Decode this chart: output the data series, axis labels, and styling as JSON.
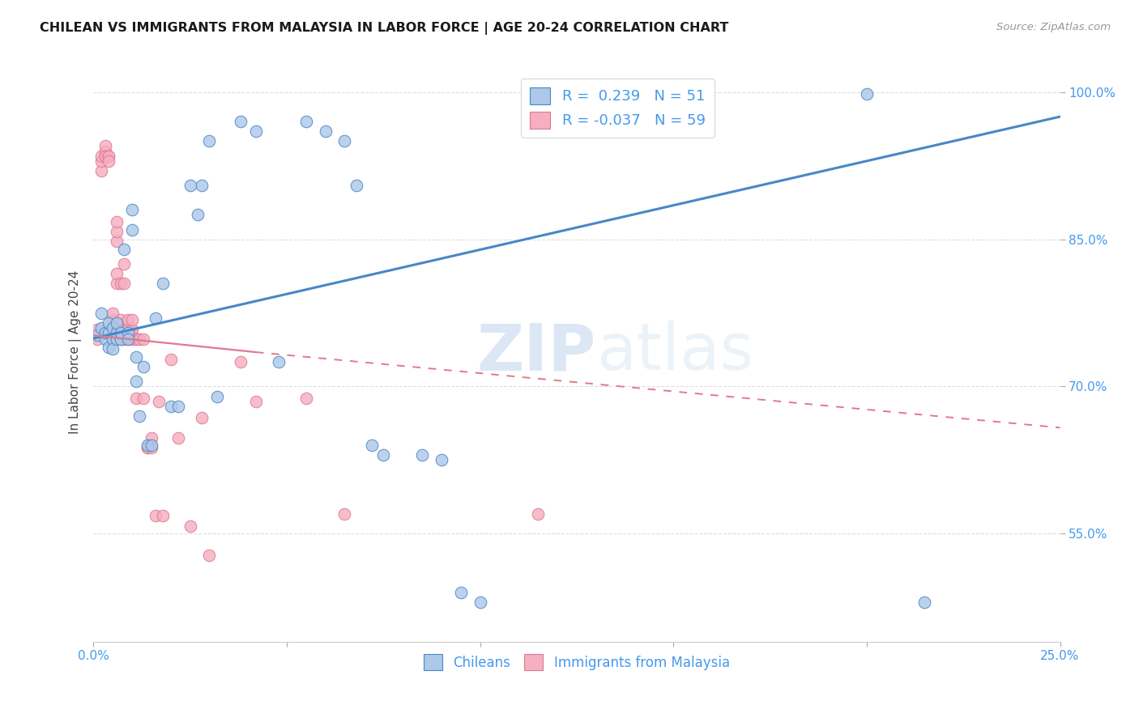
{
  "title": "CHILEAN VS IMMIGRANTS FROM MALAYSIA IN LABOR FORCE | AGE 20-24 CORRELATION CHART",
  "source": "Source: ZipAtlas.com",
  "ylabel": "In Labor Force | Age 20-24",
  "xlim": [
    0.0,
    0.25
  ],
  "ylim": [
    0.44,
    1.03
  ],
  "legend_blue_r": "0.239",
  "legend_blue_n": "51",
  "legend_pink_r": "-0.037",
  "legend_pink_n": "59",
  "blue_color": "#adc8e8",
  "pink_color": "#f5afc0",
  "blue_line_color": "#4a86c8",
  "pink_line_color": "#e07890",
  "watermark_zip": "ZIP",
  "watermark_atlas": "atlas",
  "background_color": "#ffffff",
  "blue_trend": [
    0.0,
    0.749,
    0.25,
    0.975
  ],
  "pink_trend_solid": [
    0.0,
    0.752,
    0.042,
    0.735
  ],
  "pink_trend_dashed": [
    0.042,
    0.735,
    0.25,
    0.658
  ],
  "chileans_x": [
    0.001,
    0.002,
    0.002,
    0.003,
    0.003,
    0.004,
    0.004,
    0.004,
    0.005,
    0.005,
    0.005,
    0.006,
    0.006,
    0.006,
    0.007,
    0.007,
    0.008,
    0.009,
    0.009,
    0.01,
    0.01,
    0.011,
    0.011,
    0.012,
    0.013,
    0.014,
    0.015,
    0.016,
    0.018,
    0.02,
    0.022,
    0.025,
    0.027,
    0.028,
    0.03,
    0.032,
    0.038,
    0.042,
    0.048,
    0.055,
    0.06,
    0.065,
    0.068,
    0.072,
    0.075,
    0.085,
    0.09,
    0.095,
    0.1,
    0.2,
    0.215
  ],
  "chileans_y": [
    0.752,
    0.76,
    0.775,
    0.748,
    0.755,
    0.74,
    0.755,
    0.765,
    0.748,
    0.738,
    0.76,
    0.748,
    0.755,
    0.765,
    0.748,
    0.755,
    0.84,
    0.755,
    0.748,
    0.88,
    0.86,
    0.73,
    0.705,
    0.67,
    0.72,
    0.64,
    0.64,
    0.77,
    0.805,
    0.68,
    0.68,
    0.905,
    0.875,
    0.905,
    0.95,
    0.69,
    0.97,
    0.96,
    0.725,
    0.97,
    0.96,
    0.95,
    0.905,
    0.64,
    0.63,
    0.63,
    0.625,
    0.49,
    0.48,
    0.998,
    0.48
  ],
  "malaysia_x": [
    0.001,
    0.001,
    0.002,
    0.002,
    0.002,
    0.003,
    0.003,
    0.003,
    0.003,
    0.004,
    0.004,
    0.004,
    0.005,
    0.005,
    0.005,
    0.005,
    0.006,
    0.006,
    0.006,
    0.006,
    0.006,
    0.007,
    0.007,
    0.007,
    0.007,
    0.008,
    0.008,
    0.008,
    0.008,
    0.009,
    0.009,
    0.009,
    0.009,
    0.01,
    0.01,
    0.01,
    0.01,
    0.011,
    0.011,
    0.012,
    0.013,
    0.013,
    0.014,
    0.014,
    0.015,
    0.015,
    0.016,
    0.017,
    0.018,
    0.02,
    0.022,
    0.025,
    0.028,
    0.03,
    0.038,
    0.042,
    0.055,
    0.065,
    0.115
  ],
  "malaysia_y": [
    0.748,
    0.758,
    0.92,
    0.93,
    0.935,
    0.935,
    0.94,
    0.945,
    0.935,
    0.935,
    0.935,
    0.93,
    0.748,
    0.758,
    0.768,
    0.775,
    0.848,
    0.858,
    0.868,
    0.805,
    0.815,
    0.748,
    0.758,
    0.768,
    0.805,
    0.748,
    0.758,
    0.805,
    0.825,
    0.748,
    0.75,
    0.758,
    0.768,
    0.748,
    0.752,
    0.758,
    0.768,
    0.748,
    0.688,
    0.748,
    0.748,
    0.688,
    0.638,
    0.638,
    0.638,
    0.648,
    0.568,
    0.685,
    0.568,
    0.728,
    0.648,
    0.558,
    0.668,
    0.528,
    0.725,
    0.685,
    0.688,
    0.57,
    0.57
  ]
}
